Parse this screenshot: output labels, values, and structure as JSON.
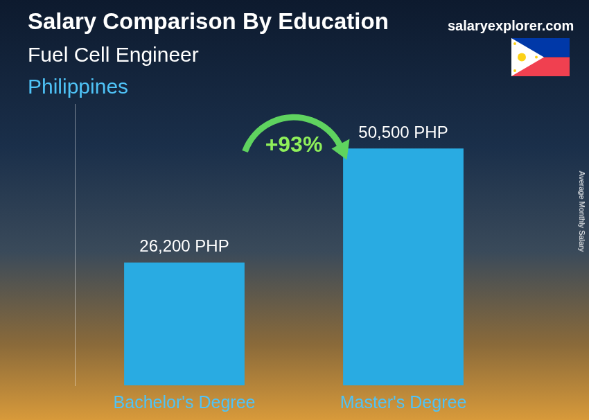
{
  "chart_data": {
    "type": "bar",
    "title": "Salary Comparison By Education",
    "subtitle": "Fuel Cell Engineer",
    "country": "Philippines",
    "source": "salaryexplorer.com",
    "y_label": "Average Monthly Salary",
    "annotation": "+93%",
    "categories": [
      "Bachelor's Degree",
      "Master's Degree"
    ],
    "values": [
      26200,
      50500
    ],
    "value_labels": [
      "26,200 PHP",
      "50,500 PHP"
    ],
    "data_labels": true,
    "color": "#29abe2",
    "ylim": [
      0,
      60000
    ],
    "grid": false,
    "tick_labels": "x"
  }
}
